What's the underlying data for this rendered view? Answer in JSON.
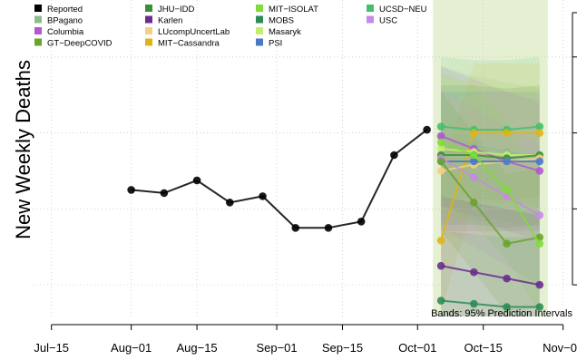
{
  "chart_data": {
    "type": "line",
    "title": "",
    "ylabel": "New Weekly Deaths",
    "xlabel": "",
    "x_ticks": [
      "Jul−15",
      "Aug−01",
      "Aug−15",
      "Sep−01",
      "Sep−15",
      "Oct−01",
      "Oct−15",
      "Nov−01"
    ],
    "x_tick_days": [
      0,
      17,
      31,
      48,
      62,
      78,
      92,
      109
    ],
    "x_range_days": [
      -4,
      111
    ],
    "y_range_index": [
      0,
      100
    ],
    "y_gridlines_index": [
      10,
      34,
      58,
      82
    ],
    "grid": true,
    "legend_placement": "top-left",
    "annotation": "Bands: 95% Prediction Intervals",
    "reported": {
      "name": "Reported",
      "color": "#000000",
      "days": [
        17,
        24,
        31,
        38,
        45,
        52,
        59,
        66,
        73,
        80
      ],
      "values": [
        40,
        39,
        43,
        36,
        38,
        28,
        28,
        30,
        51,
        59
      ]
    },
    "legend": [
      {
        "name": "Reported",
        "color": "#000000"
      },
      {
        "name": "BPagano",
        "color": "#8fbc8f"
      },
      {
        "name": "Columbia",
        "color": "#b259cf"
      },
      {
        "name": "GT−DeepCOVID",
        "color": "#6ba32f"
      },
      {
        "name": "JHU−IDD",
        "color": "#3a8f3a"
      },
      {
        "name": "Karlen",
        "color": "#6a2d8f"
      },
      {
        "name": "LUcompUncertLab",
        "color": "#f5cf82"
      },
      {
        "name": "MIT−Cassandra",
        "color": "#e0b418"
      },
      {
        "name": "MIT−ISOLAT",
        "color": "#7fdc3c"
      },
      {
        "name": "MOBS",
        "color": "#2e8b57"
      },
      {
        "name": "Masaryk",
        "color": "#c6ec6e"
      },
      {
        "name": "PSI",
        "color": "#4a78c8"
      },
      {
        "name": "UCSD−NEU",
        "color": "#45c06a"
      },
      {
        "name": "USC",
        "color": "#c58be6"
      }
    ],
    "forecast_days": [
      83,
      90,
      97,
      104
    ],
    "forecasts": [
      {
        "name": "UCSD−NEU",
        "color": "#45c06a",
        "values": [
          60,
          59,
          59,
          60
        ]
      },
      {
        "name": "MIT−Cassandra",
        "color": "#e0b418",
        "values": [
          24,
          58,
          58,
          58
        ]
      },
      {
        "name": "BPagano",
        "color": "#8fbc8f",
        "values": [
          57,
          54,
          52,
          50
        ]
      },
      {
        "name": "Columbia",
        "color": "#b259cf",
        "values": [
          57,
          53,
          49,
          46
        ]
      },
      {
        "name": "Masaryk",
        "color": "#c6ec6e",
        "values": [
          53,
          52,
          51,
          51
        ]
      },
      {
        "name": "JHU−IDD",
        "color": "#3a8f3a",
        "values": [
          51,
          51,
          50,
          51
        ]
      },
      {
        "name": "LUcompUncertLab",
        "color": "#f5cf82",
        "values": [
          46,
          48,
          49,
          50
        ]
      },
      {
        "name": "PSI",
        "color": "#4a78c8",
        "values": [
          49,
          49,
          49,
          49
        ]
      },
      {
        "name": "USC",
        "color": "#c58be6",
        "values": [
          50,
          44,
          38,
          32
        ]
      },
      {
        "name": "GT−DeepCOVID",
        "color": "#6ba32f",
        "values": [
          49,
          36,
          23,
          25
        ]
      },
      {
        "name": "MIT−ISOLAT",
        "color": "#7fdc3c",
        "values": [
          55,
          51,
          40,
          23
        ]
      },
      {
        "name": "Karlen",
        "color": "#6a2d8f",
        "values": [
          16,
          14,
          12,
          10
        ]
      },
      {
        "name": "MOBS",
        "color": "#2e8b57",
        "values": [
          5,
          4,
          3,
          3
        ]
      }
    ],
    "band_bounds": {
      "lower": 0,
      "upper": 100
    }
  }
}
